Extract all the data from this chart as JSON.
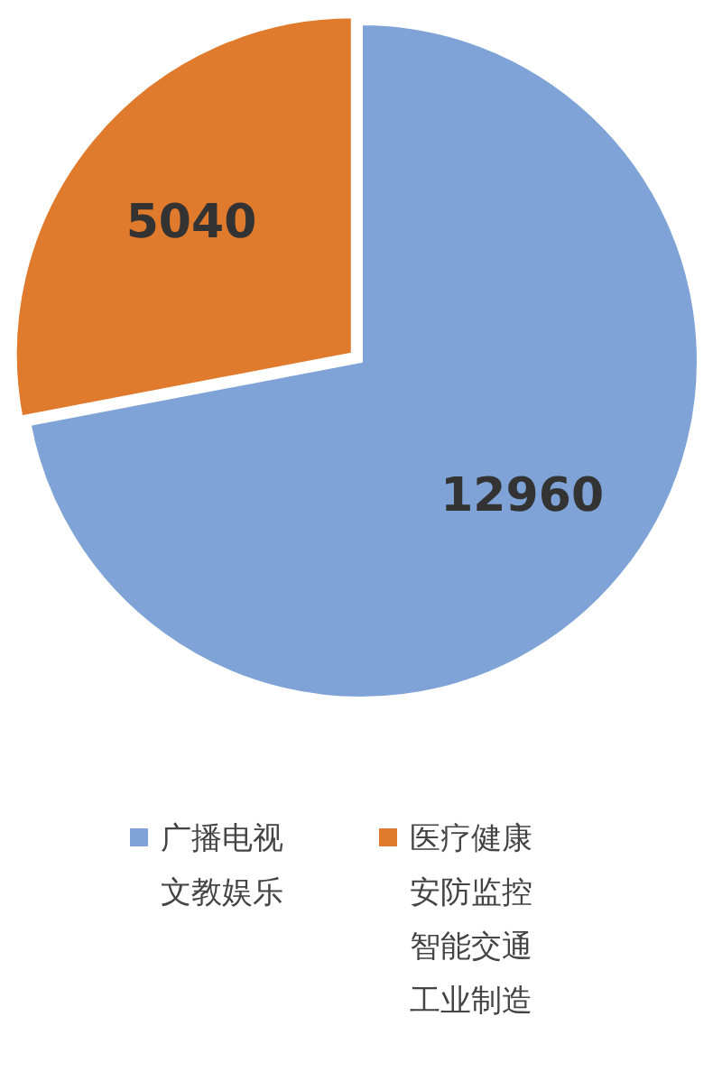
{
  "chart_data": {
    "type": "pie",
    "categories": [
      "广播电视文教娱乐",
      "医疗健康安防监控智能交通工业制造"
    ],
    "values": [
      12960,
      5040
    ],
    "colors": [
      "#7fa3d6",
      "#e07a2c"
    ],
    "data_labels": true,
    "legend": "bottom"
  }
}
